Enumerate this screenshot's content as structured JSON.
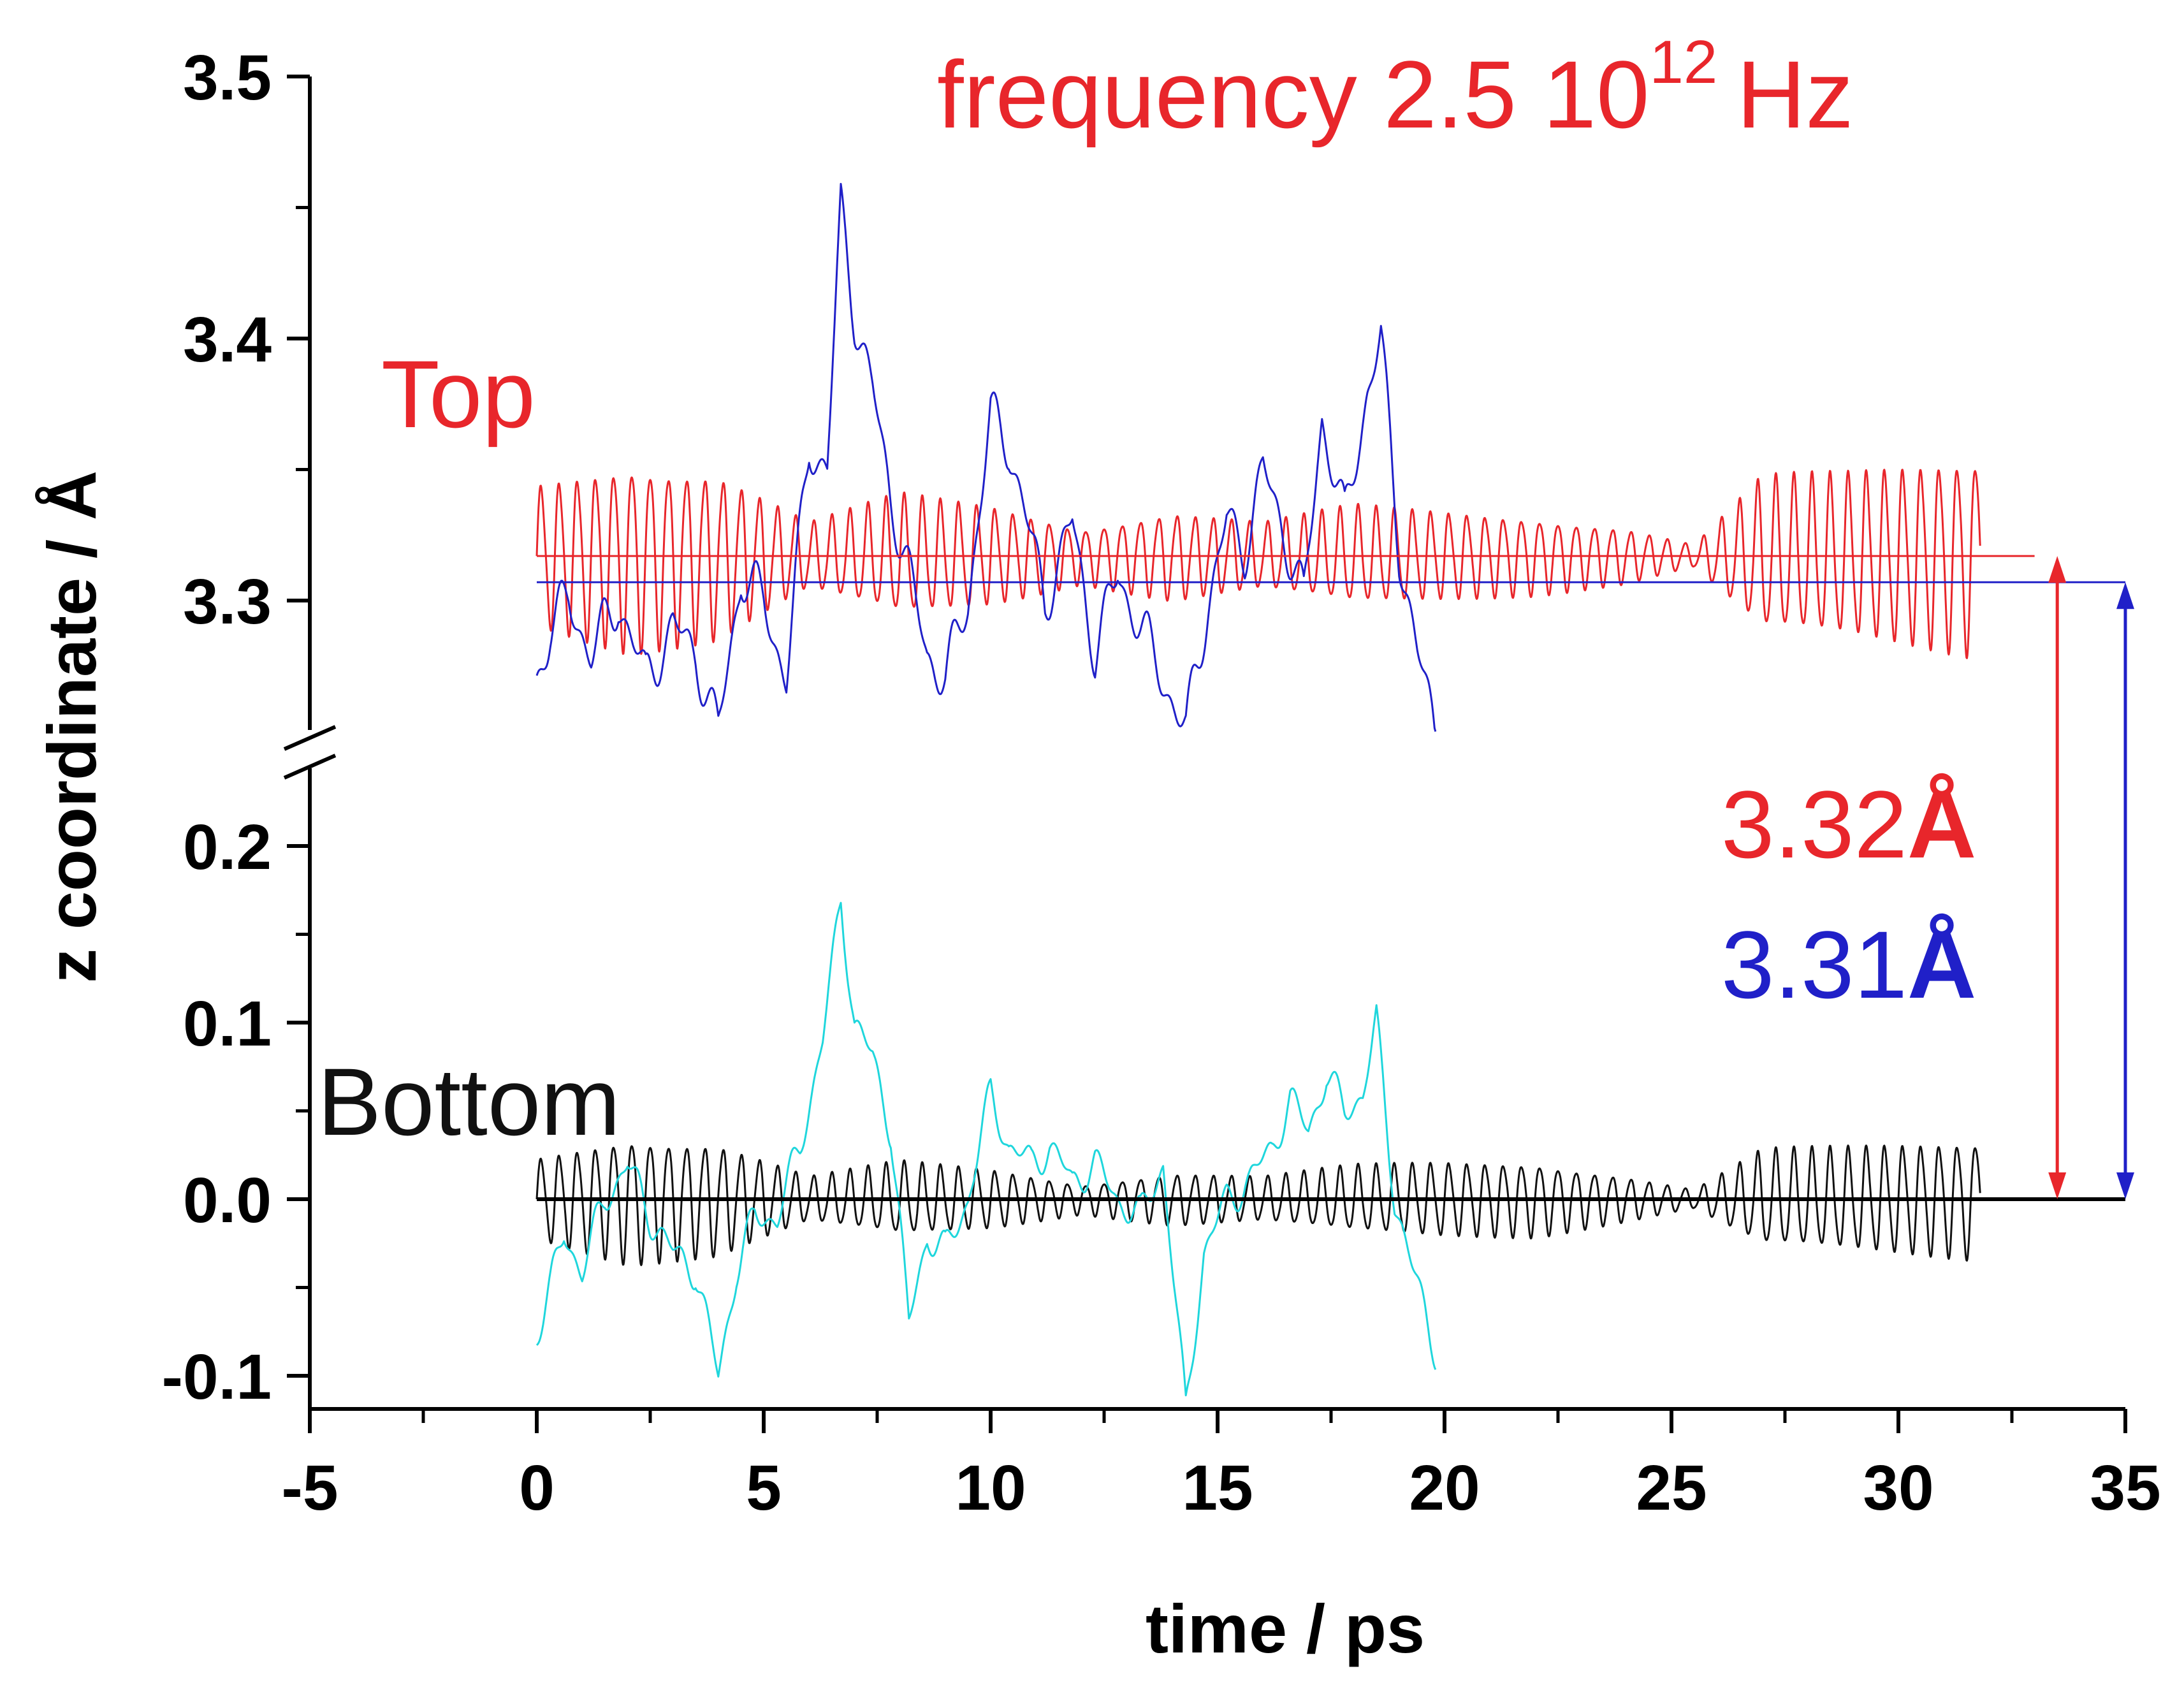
{
  "chart_data": {
    "type": "line",
    "title": "frequency 2.5 10^12 Hz",
    "title_parts": {
      "base": "frequency 2.5 10",
      "exponent": "12",
      "unit": "Hz"
    },
    "xlabel": "time / ps",
    "ylabel": "z coordinate / Å",
    "xlim": [
      -5,
      35
    ],
    "x_ticks": [
      -5,
      0,
      5,
      10,
      15,
      20,
      25,
      30,
      35
    ],
    "x_tick_labels": [
      "-5",
      "0",
      "5",
      "10",
      "15",
      "20",
      "25",
      "30",
      "35"
    ],
    "y_axis_break": true,
    "y_segments": [
      {
        "name": "upper",
        "range": [
          3.25,
          3.5
        ],
        "ticks": [
          3.3,
          3.4,
          3.5
        ],
        "tick_labels": [
          "3.3",
          "3.4",
          "3.5"
        ]
      },
      {
        "name": "lower",
        "range": [
          -0.12,
          0.24
        ],
        "ticks": [
          -0.1,
          0.0,
          0.1,
          0.2
        ],
        "tick_labels": [
          "-0.1",
          "0.0",
          "0.1",
          "0.2"
        ]
      }
    ],
    "labels": {
      "top": "Top",
      "bottom": "Bottom"
    },
    "series": [
      {
        "name": "Top (red)",
        "color": "#e8262b",
        "segment": "upper",
        "t_range": [
          0,
          31.8
        ],
        "knots_t": [
          0,
          2,
          4,
          6,
          8,
          10,
          12,
          14,
          16,
          18,
          20,
          22,
          24,
          25.5,
          27,
          29,
          31.8
        ],
        "knots_amp": [
          0.026,
          0.034,
          0.03,
          0.012,
          0.022,
          0.018,
          0.01,
          0.016,
          0.012,
          0.018,
          0.016,
          0.014,
          0.01,
          0.004,
          0.028,
          0.03,
          0.036
        ],
        "mean": 3.317,
        "freq_per_ps": 2.5
      },
      {
        "name": "Top (blue)",
        "color": "#2020c8",
        "segment": "upper",
        "t_range": [
          0,
          19.8
        ],
        "points": [
          [
            0,
            3.27
          ],
          [
            0.3,
            3.29
          ],
          [
            0.7,
            3.3
          ],
          [
            1.2,
            3.28
          ],
          [
            1.8,
            3.3
          ],
          [
            2.4,
            3.27
          ],
          [
            3,
            3.29
          ],
          [
            3.5,
            3.28
          ],
          [
            4,
            3.25
          ],
          [
            4.5,
            3.31
          ],
          [
            5,
            3.3
          ],
          [
            5.5,
            3.27
          ],
          [
            6,
            3.36
          ],
          [
            6.4,
            3.35
          ],
          [
            6.7,
            3.45
          ],
          [
            7,
            3.41
          ],
          [
            7.4,
            3.38
          ],
          [
            7.8,
            3.34
          ],
          [
            8.2,
            3.31
          ],
          [
            8.6,
            3.28
          ],
          [
            9,
            3.27
          ],
          [
            9.5,
            3.3
          ],
          [
            10,
            3.37
          ],
          [
            10.4,
            3.36
          ],
          [
            10.8,
            3.33
          ],
          [
            11.2,
            3.3
          ],
          [
            11.8,
            3.33
          ],
          [
            12.3,
            3.28
          ],
          [
            12.8,
            3.31
          ],
          [
            13.3,
            3.29
          ],
          [
            13.8,
            3.27
          ],
          [
            14.3,
            3.25
          ],
          [
            14.8,
            3.3
          ],
          [
            15.2,
            3.33
          ],
          [
            15.6,
            3.32
          ],
          [
            16,
            3.35
          ],
          [
            16.4,
            3.33
          ],
          [
            16.9,
            3.3
          ],
          [
            17.3,
            3.37
          ],
          [
            17.8,
            3.33
          ],
          [
            18.3,
            3.38
          ],
          [
            18.6,
            3.4
          ],
          [
            19,
            3.32
          ],
          [
            19.4,
            3.28
          ],
          [
            19.8,
            3.25
          ]
        ]
      },
      {
        "name": "Bottom (black)",
        "color": "#111111",
        "segment": "lower",
        "t_range": [
          0,
          31.8
        ],
        "knots_t": [
          0,
          2,
          4,
          6,
          8,
          10,
          12,
          14,
          16,
          18,
          20,
          22,
          24,
          25.5,
          27,
          29,
          31.8
        ],
        "knots_amp": [
          0.022,
          0.034,
          0.03,
          0.012,
          0.02,
          0.016,
          0.008,
          0.014,
          0.012,
          0.018,
          0.02,
          0.02,
          0.012,
          0.005,
          0.026,
          0.028,
          0.032
        ],
        "mean": 0.0,
        "freq_per_ps": 2.5
      },
      {
        "name": "Bottom (cyan)",
        "color": "#1fd6dc",
        "segment": "lower",
        "t_range": [
          0,
          19.8
        ],
        "points": [
          [
            0,
            -0.075
          ],
          [
            0.3,
            -0.05
          ],
          [
            0.6,
            -0.02
          ],
          [
            1,
            -0.04
          ],
          [
            1.5,
            0.0
          ],
          [
            2,
            0.02
          ],
          [
            2.5,
            -0.01
          ],
          [
            3,
            -0.03
          ],
          [
            3.5,
            -0.04
          ],
          [
            4,
            -0.1
          ],
          [
            4.4,
            -0.04
          ],
          [
            4.8,
            -0.01
          ],
          [
            5.3,
            -0.01
          ],
          [
            5.8,
            0.03
          ],
          [
            6.3,
            0.09
          ],
          [
            6.7,
            0.17
          ],
          [
            7,
            0.1
          ],
          [
            7.4,
            0.08
          ],
          [
            7.8,
            0.04
          ],
          [
            8.2,
            -0.07
          ],
          [
            8.6,
            -0.02
          ],
          [
            9,
            -0.03
          ],
          [
            9.5,
            0.0
          ],
          [
            10,
            0.06
          ],
          [
            10.4,
            0.03
          ],
          [
            10.9,
            0.02
          ],
          [
            11.3,
            0.03
          ],
          [
            11.8,
            0.01
          ],
          [
            12.3,
            0.02
          ],
          [
            12.8,
            0.0
          ],
          [
            13.3,
            -0.01
          ],
          [
            13.8,
            0.02
          ],
          [
            14.3,
            -0.12
          ],
          [
            14.7,
            -0.03
          ],
          [
            15.2,
            0.0
          ],
          [
            15.7,
            0.01
          ],
          [
            16.2,
            0.03
          ],
          [
            16.6,
            0.055
          ],
          [
            17,
            0.04
          ],
          [
            17.4,
            0.07
          ],
          [
            17.8,
            0.05
          ],
          [
            18.2,
            0.06
          ],
          [
            18.5,
            0.1
          ],
          [
            18.9,
            0.0
          ],
          [
            19.3,
            -0.04
          ],
          [
            19.8,
            -0.085
          ]
        ]
      }
    ],
    "reference_lines": [
      {
        "name": "red-mean-line",
        "segment": "upper",
        "y": 3.317,
        "x_range": [
          0,
          33.0
        ],
        "color": "#e8262b"
      },
      {
        "name": "blue-mean-line",
        "segment": "upper",
        "y": 3.307,
        "x_range": [
          0,
          35.0
        ],
        "color": "#2020c8"
      },
      {
        "name": "zero-line",
        "segment": "lower",
        "y": 0.0,
        "x_range": [
          0,
          35.0
        ],
        "color": "#000000"
      }
    ],
    "arrows": [
      {
        "name": "red-distance-arrow",
        "x": 33.5,
        "color": "#e8262b"
      },
      {
        "name": "blue-distance-arrow",
        "x": 35.0,
        "color": "#2020c8"
      }
    ],
    "annotations": [
      {
        "name": "red-distance-label",
        "value": "3.32",
        "unit": "Å",
        "color": "#e8262b"
      },
      {
        "name": "blue-distance-label",
        "value": "3.31",
        "unit": "Å",
        "color": "#2020c8"
      }
    ]
  }
}
